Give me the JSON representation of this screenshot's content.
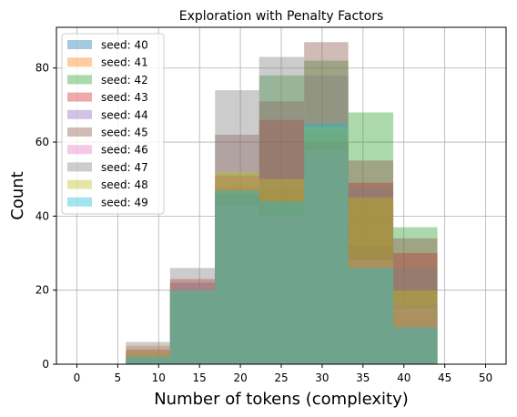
{
  "chart_data": {
    "type": "bar",
    "title": "Exploration with Penalty Factors",
    "xlabel": "Number of tokens (complexity)",
    "ylabel": "Count",
    "xlim": [
      -2.5,
      52.5
    ],
    "ylim": [
      0,
      91
    ],
    "xticks": [
      0,
      5,
      10,
      15,
      20,
      25,
      30,
      35,
      40,
      45,
      50
    ],
    "yticks": [
      0,
      20,
      40,
      60,
      80
    ],
    "grid": true,
    "legend_position": "upper-left",
    "bin_edges": [
      6.0,
      11.4,
      16.9,
      22.3,
      27.8,
      33.2,
      38.7,
      44.1
    ],
    "series": [
      {
        "name": "seed: 40",
        "color": "#1f77b4",
        "values": [
          3,
          18,
          44,
          42,
          59,
          32,
          14
        ]
      },
      {
        "name": "seed: 41",
        "color": "#ff7f0e",
        "values": [
          5,
          19,
          48,
          47,
          62,
          45,
          13
        ]
      },
      {
        "name": "seed: 42",
        "color": "#2ca02c",
        "values": [
          2,
          19,
          46,
          78,
          82,
          68,
          37
        ]
      },
      {
        "name": "seed: 43",
        "color": "#d62728",
        "values": [
          3,
          23,
          51,
          66,
          60,
          49,
          30
        ]
      },
      {
        "name": "seed: 44",
        "color": "#9467bd",
        "values": [
          2,
          20,
          45,
          44,
          56,
          30,
          16
        ]
      },
      {
        "name": "seed: 45",
        "color": "#8c564b",
        "values": [
          4,
          22,
          62,
          71,
          87,
          55,
          34
        ]
      },
      {
        "name": "seed: 46",
        "color": "#e377c2",
        "values": [
          3,
          21,
          43,
          40,
          58,
          28,
          15
        ]
      },
      {
        "name": "seed: 47",
        "color": "#7f7f7f",
        "values": [
          6,
          26,
          74,
          83,
          78,
          48,
          26
        ]
      },
      {
        "name": "seed: 48",
        "color": "#bcbd22",
        "values": [
          3,
          20,
          52,
          50,
          64,
          45,
          20
        ]
      },
      {
        "name": "seed: 49",
        "color": "#17becf",
        "values": [
          2,
          20,
          47,
          44,
          65,
          26,
          10
        ]
      }
    ]
  }
}
